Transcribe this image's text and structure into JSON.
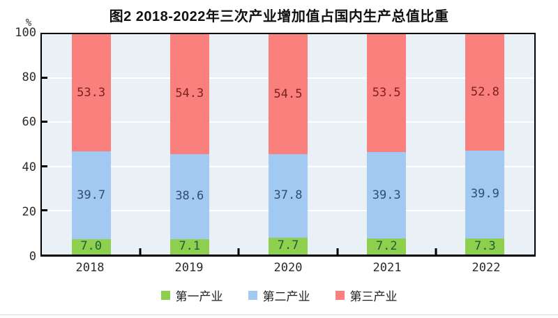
{
  "chart_data": {
    "type": "bar",
    "stacked": true,
    "title": "图2 2018-2022年三次产业增加值占国内生产总值比重",
    "categories": [
      "2018",
      "2019",
      "2020",
      "2021",
      "2022"
    ],
    "series": [
      {
        "name": "第一产业",
        "color": "#8ED04E",
        "label_color": "#176139",
        "values": [
          7.0,
          7.1,
          7.7,
          7.2,
          7.3
        ]
      },
      {
        "name": "第二产业",
        "color": "#A2C9F2",
        "label_color": "#2F4E73",
        "values": [
          39.7,
          38.6,
          37.8,
          39.3,
          39.9
        ]
      },
      {
        "name": "第三产业",
        "color": "#F9807D",
        "label_color": "#7E2020",
        "values": [
          53.3,
          54.3,
          54.5,
          53.5,
          52.8
        ]
      }
    ],
    "xlabel": "",
    "ylabel": "%",
    "ylim": [
      0,
      100
    ],
    "y_ticks": [
      100,
      80,
      60,
      40,
      20,
      0
    ],
    "grid": true,
    "legend_position": "bottom"
  },
  "y_axis": {
    "unit": "%"
  },
  "colors": {
    "plot_bg": "#E9F1F6",
    "grid": "#FFFFFF",
    "axis": "#000000",
    "tick_label": "#2B2B2B"
  }
}
